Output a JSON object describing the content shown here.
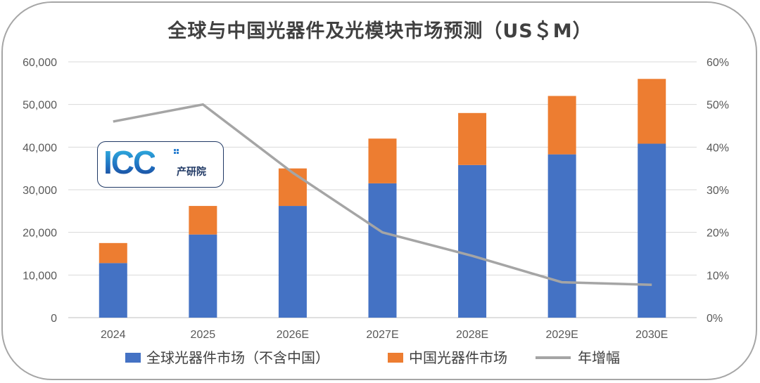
{
  "title": "全球与中国光器件及光模块市场预测（US＄M）",
  "logo": {
    "text": "ICC",
    "subtitle": "产研院"
  },
  "chart_data": {
    "type": "bar",
    "stacked": true,
    "categories": [
      "2024",
      "2025",
      "2026E",
      "2027E",
      "2028E",
      "2029E",
      "2030E"
    ],
    "series": [
      {
        "name": "全球光器件市场（不含中国）",
        "type": "bar",
        "axis": "left",
        "color": "#4472c4",
        "values": [
          12800,
          19500,
          26200,
          31500,
          35800,
          38300,
          40800
        ]
      },
      {
        "name": "中国光器件市场",
        "type": "bar",
        "axis": "left",
        "color": "#ed7d31",
        "values": [
          4700,
          6700,
          8800,
          10500,
          12200,
          13700,
          15200
        ]
      },
      {
        "name": "年增幅",
        "type": "line",
        "axis": "right",
        "color": "#a5a5a5",
        "values": [
          46,
          50,
          34,
          20,
          14.5,
          8.3,
          7.7
        ]
      }
    ],
    "y_left": {
      "min": 0,
      "max": 60000,
      "ticks": [
        "0",
        "10,000",
        "20,000",
        "30,000",
        "40,000",
        "50,000",
        "60,000"
      ]
    },
    "y_right": {
      "min": 0,
      "max": 60,
      "ticks": [
        "0%",
        "10%",
        "20%",
        "30%",
        "40%",
        "50%",
        "60%"
      ]
    },
    "grid": true,
    "legend_position": "bottom"
  }
}
